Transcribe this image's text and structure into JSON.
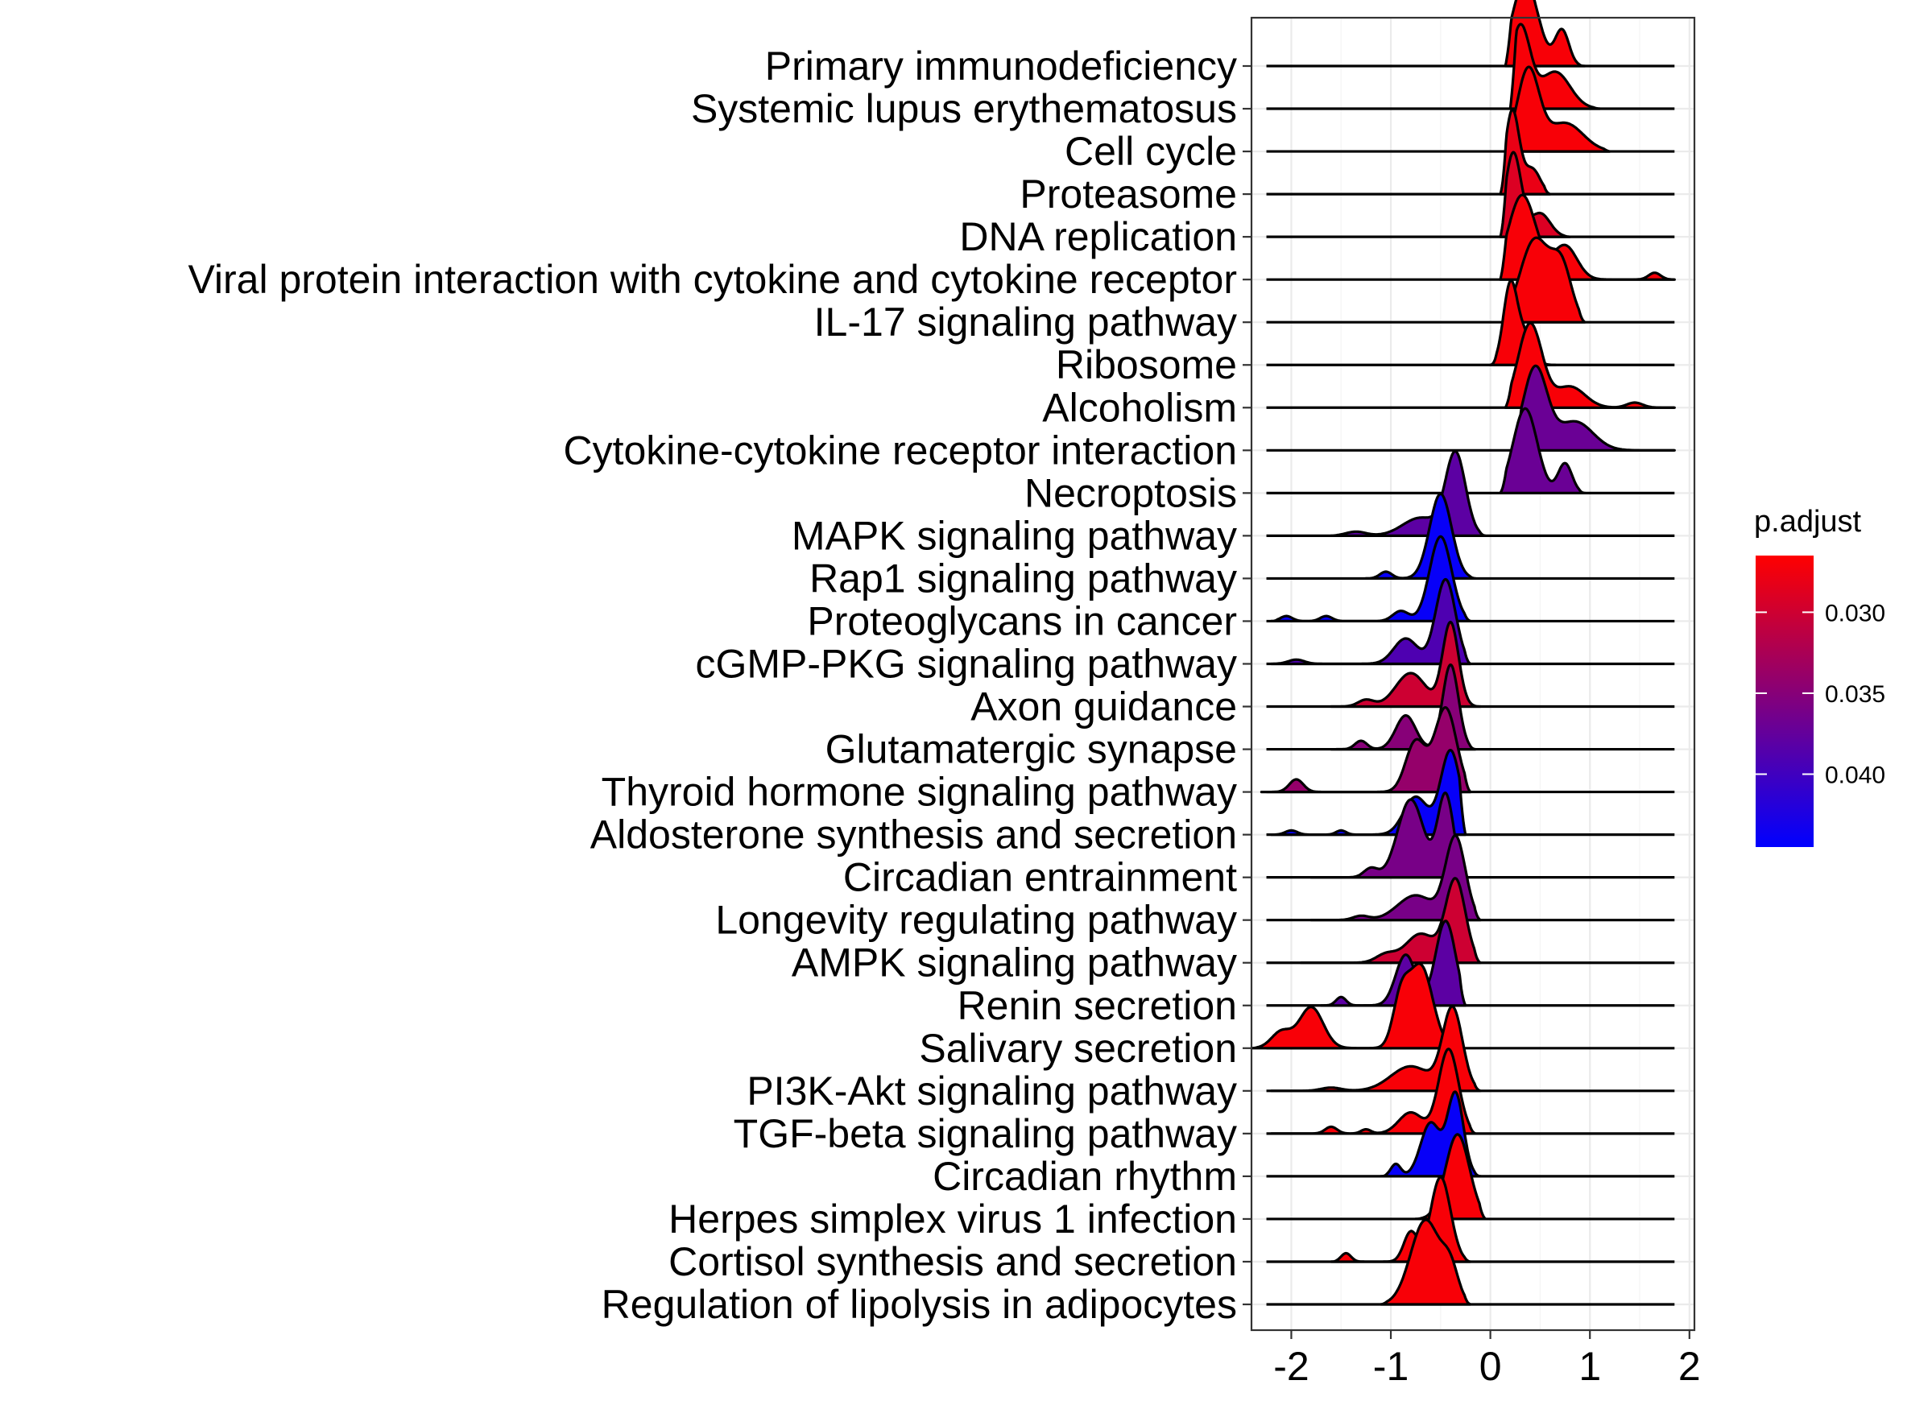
{
  "chart_data": {
    "type": "ridgeline",
    "title": "",
    "xlabel": "",
    "ylabel": "",
    "xlim": [
      -2.4,
      2.05
    ],
    "x_ticks": [
      -2,
      -1,
      0,
      1,
      2
    ],
    "x_tick_labels": [
      "-2",
      "-1",
      "0",
      "1",
      "2"
    ],
    "grid": true,
    "legend": {
      "title": "p.adjust",
      "position": "right",
      "range": [
        0.0265,
        0.0445
      ],
      "ticks": [
        0.03,
        0.035,
        0.04
      ],
      "tick_labels": [
        "0.030",
        "0.035",
        "0.040"
      ],
      "color_low": "#FF0000",
      "color_high": "#0000FF"
    },
    "series": [
      {
        "label": "Primary immunodeficiency",
        "p_adjust": 0.027,
        "range": [
          0.15,
          0.95
        ],
        "peaks": [
          {
            "x": 0.35,
            "h": 1.0,
            "w": 0.13
          },
          {
            "x": 0.72,
            "h": 0.42,
            "w": 0.07
          }
        ]
      },
      {
        "label": "Systemic lupus erythematosus",
        "p_adjust": 0.027,
        "range": [
          0.2,
          1.1
        ],
        "peaks": [
          {
            "x": 0.3,
            "h": 1.0,
            "w": 0.1
          },
          {
            "x": 0.65,
            "h": 0.45,
            "w": 0.15
          }
        ]
      },
      {
        "label": "Cell cycle",
        "p_adjust": 0.027,
        "range": [
          0.15,
          1.2
        ],
        "peaks": [
          {
            "x": 0.38,
            "h": 1.0,
            "w": 0.11
          },
          {
            "x": 0.75,
            "h": 0.35,
            "w": 0.18
          }
        ]
      },
      {
        "label": "Proteasome",
        "p_adjust": 0.028,
        "range": [
          0.1,
          0.6
        ],
        "peaks": [
          {
            "x": 0.22,
            "h": 1.0,
            "w": 0.07
          },
          {
            "x": 0.42,
            "h": 0.3,
            "w": 0.08
          }
        ]
      },
      {
        "label": "DNA replication",
        "p_adjust": 0.029,
        "range": [
          0.1,
          0.8
        ],
        "peaks": [
          {
            "x": 0.23,
            "h": 1.0,
            "w": 0.08
          },
          {
            "x": 0.5,
            "h": 0.28,
            "w": 0.1
          }
        ]
      },
      {
        "label": "Viral protein interaction with cytokine and cytokine receptor",
        "p_adjust": 0.027,
        "range": [
          0.1,
          1.85
        ],
        "peaks": [
          {
            "x": 0.32,
            "h": 1.0,
            "w": 0.14
          },
          {
            "x": 0.75,
            "h": 0.4,
            "w": 0.12
          },
          {
            "x": 1.65,
            "h": 0.08,
            "w": 0.06
          }
        ]
      },
      {
        "label": "IL-17 signaling pathway",
        "p_adjust": 0.027,
        "range": [
          0.15,
          0.95
        ],
        "peaks": [
          {
            "x": 0.45,
            "h": 1.0,
            "w": 0.15
          },
          {
            "x": 0.72,
            "h": 0.6,
            "w": 0.1
          }
        ]
      },
      {
        "label": "Ribosome",
        "p_adjust": 0.027,
        "range": [
          0.0,
          0.65
        ],
        "peaks": [
          {
            "x": 0.2,
            "h": 1.0,
            "w": 0.07
          },
          {
            "x": 0.35,
            "h": 0.35,
            "w": 0.08
          }
        ]
      },
      {
        "label": "Alcoholism",
        "p_adjust": 0.027,
        "range": [
          0.15,
          1.85
        ],
        "peaks": [
          {
            "x": 0.4,
            "h": 1.0,
            "w": 0.12
          },
          {
            "x": 0.8,
            "h": 0.25,
            "w": 0.15
          },
          {
            "x": 1.45,
            "h": 0.06,
            "w": 0.08
          }
        ]
      },
      {
        "label": "Cytokine-cytokine receptor interaction",
        "p_adjust": 0.037,
        "range": [
          0.25,
          1.85
        ],
        "peaks": [
          {
            "x": 0.45,
            "h": 1.0,
            "w": 0.12
          },
          {
            "x": 0.85,
            "h": 0.35,
            "w": 0.18
          }
        ]
      },
      {
        "label": "Necroptosis",
        "p_adjust": 0.037,
        "range": [
          0.1,
          0.95
        ],
        "peaks": [
          {
            "x": 0.35,
            "h": 1.0,
            "w": 0.12
          },
          {
            "x": 0.75,
            "h": 0.35,
            "w": 0.07
          }
        ]
      },
      {
        "label": "MAPK signaling pathway",
        "p_adjust": 0.038,
        "range": [
          -1.6,
          -0.05
        ],
        "peaks": [
          {
            "x": -0.35,
            "h": 1.0,
            "w": 0.1
          },
          {
            "x": -0.7,
            "h": 0.22,
            "w": 0.18
          },
          {
            "x": -1.35,
            "h": 0.05,
            "w": 0.1
          }
        ]
      },
      {
        "label": "Rap1 signaling pathway",
        "p_adjust": 0.044,
        "range": [
          -1.25,
          -0.15
        ],
        "peaks": [
          {
            "x": -0.5,
            "h": 1.0,
            "w": 0.11
          },
          {
            "x": -1.05,
            "h": 0.08,
            "w": 0.06
          }
        ]
      },
      {
        "label": "Proteoglycans in cancer",
        "p_adjust": 0.044,
        "range": [
          -2.2,
          -0.2
        ],
        "peaks": [
          {
            "x": -0.5,
            "h": 1.0,
            "w": 0.11
          },
          {
            "x": -0.9,
            "h": 0.12,
            "w": 0.08
          },
          {
            "x": -1.65,
            "h": 0.06,
            "w": 0.06
          },
          {
            "x": -2.05,
            "h": 0.06,
            "w": 0.06
          }
        ]
      },
      {
        "label": "cGMP-PKG signaling pathway",
        "p_adjust": 0.039,
        "range": [
          -2.2,
          -0.2
        ],
        "peaks": [
          {
            "x": -0.45,
            "h": 1.0,
            "w": 0.1
          },
          {
            "x": -0.85,
            "h": 0.3,
            "w": 0.12
          },
          {
            "x": -1.95,
            "h": 0.05,
            "w": 0.08
          }
        ]
      },
      {
        "label": "Axon guidance",
        "p_adjust": 0.03,
        "range": [
          -1.6,
          -0.1
        ],
        "peaks": [
          {
            "x": -0.4,
            "h": 1.0,
            "w": 0.08
          },
          {
            "x": -0.8,
            "h": 0.4,
            "w": 0.15
          },
          {
            "x": -1.25,
            "h": 0.08,
            "w": 0.08
          }
        ]
      },
      {
        "label": "Glutamatergic synapse",
        "p_adjust": 0.035,
        "range": [
          -1.6,
          -0.15
        ],
        "peaks": [
          {
            "x": -0.4,
            "h": 1.0,
            "w": 0.08
          },
          {
            "x": -0.85,
            "h": 0.4,
            "w": 0.1
          },
          {
            "x": -1.3,
            "h": 0.1,
            "w": 0.06
          }
        ]
      },
      {
        "label": "Thyroid hormone signaling pathway",
        "p_adjust": 0.034,
        "range": [
          -2.3,
          -0.2
        ],
        "peaks": [
          {
            "x": -0.45,
            "h": 1.0,
            "w": 0.11
          },
          {
            "x": -0.75,
            "h": 0.6,
            "w": 0.1
          },
          {
            "x": -1.95,
            "h": 0.15,
            "w": 0.07
          }
        ]
      },
      {
        "label": "Aldosterone synthesis and secretion",
        "p_adjust": 0.044,
        "range": [
          -2.2,
          -0.25
        ],
        "peaks": [
          {
            "x": -0.4,
            "h": 1.0,
            "w": 0.1
          },
          {
            "x": -0.75,
            "h": 0.45,
            "w": 0.12
          },
          {
            "x": -1.5,
            "h": 0.05,
            "w": 0.05
          },
          {
            "x": -2.0,
            "h": 0.05,
            "w": 0.06
          }
        ]
      },
      {
        "label": "Circadian entrainment",
        "p_adjust": 0.036,
        "range": [
          -1.8,
          -0.25
        ],
        "peaks": [
          {
            "x": -0.45,
            "h": 0.9,
            "w": 0.08
          },
          {
            "x": -0.8,
            "h": 0.85,
            "w": 0.13
          },
          {
            "x": -1.2,
            "h": 0.1,
            "w": 0.07
          }
        ]
      },
      {
        "label": "Longevity regulating pathway",
        "p_adjust": 0.036,
        "range": [
          -1.8,
          -0.1
        ],
        "peaks": [
          {
            "x": -0.35,
            "h": 1.0,
            "w": 0.1
          },
          {
            "x": -0.75,
            "h": 0.3,
            "w": 0.18
          },
          {
            "x": -1.3,
            "h": 0.05,
            "w": 0.08
          }
        ]
      },
      {
        "label": "AMPK signaling pathway",
        "p_adjust": 0.03,
        "range": [
          -1.9,
          -0.1
        ],
        "peaks": [
          {
            "x": -0.35,
            "h": 1.0,
            "w": 0.1
          },
          {
            "x": -0.7,
            "h": 0.35,
            "w": 0.15
          },
          {
            "x": -1.05,
            "h": 0.1,
            "w": 0.1
          }
        ]
      },
      {
        "label": "Renin secretion",
        "p_adjust": 0.038,
        "range": [
          -1.7,
          -0.25
        ],
        "peaks": [
          {
            "x": -0.45,
            "h": 1.0,
            "w": 0.1
          },
          {
            "x": -0.85,
            "h": 0.6,
            "w": 0.1
          },
          {
            "x": -1.5,
            "h": 0.1,
            "w": 0.05
          }
        ]
      },
      {
        "label": "Salivary secretion",
        "p_adjust": 0.027,
        "range": [
          -2.4,
          -0.35
        ],
        "peaks": [
          {
            "x": -0.7,
            "h": 1.0,
            "w": 0.12
          },
          {
            "x": -0.9,
            "h": 0.55,
            "w": 0.08
          },
          {
            "x": -1.8,
            "h": 0.5,
            "w": 0.12
          },
          {
            "x": -2.1,
            "h": 0.2,
            "w": 0.1
          }
        ]
      },
      {
        "label": "PI3K-Akt signaling pathway",
        "p_adjust": 0.027,
        "range": [
          -2.2,
          -0.1
        ],
        "peaks": [
          {
            "x": -0.38,
            "h": 1.0,
            "w": 0.1
          },
          {
            "x": -0.8,
            "h": 0.3,
            "w": 0.2
          },
          {
            "x": -1.6,
            "h": 0.04,
            "w": 0.1
          }
        ]
      },
      {
        "label": "TGF-beta signaling pathway",
        "p_adjust": 0.027,
        "range": [
          -2.2,
          -0.15
        ],
        "peaks": [
          {
            "x": -0.42,
            "h": 1.0,
            "w": 0.1
          },
          {
            "x": -0.8,
            "h": 0.25,
            "w": 0.12
          },
          {
            "x": -1.6,
            "h": 0.08,
            "w": 0.06
          },
          {
            "x": -1.25,
            "h": 0.05,
            "w": 0.05
          }
        ]
      },
      {
        "label": "Circadian rhythm",
        "p_adjust": 0.044,
        "range": [
          -1.1,
          -0.1
        ],
        "peaks": [
          {
            "x": -0.35,
            "h": 1.0,
            "w": 0.08
          },
          {
            "x": -0.6,
            "h": 0.65,
            "w": 0.1
          },
          {
            "x": -0.95,
            "h": 0.15,
            "w": 0.05
          }
        ]
      },
      {
        "label": "Herpes simplex virus 1 infection",
        "p_adjust": 0.027,
        "range": [
          -0.75,
          -0.05
        ],
        "peaks": [
          {
            "x": -0.33,
            "h": 1.0,
            "w": 0.12
          }
        ]
      },
      {
        "label": "Cortisol synthesis and secretion",
        "p_adjust": 0.027,
        "range": [
          -1.6,
          -0.2
        ],
        "peaks": [
          {
            "x": -0.5,
            "h": 1.0,
            "w": 0.1
          },
          {
            "x": -0.8,
            "h": 0.35,
            "w": 0.07
          },
          {
            "x": -1.45,
            "h": 0.1,
            "w": 0.05
          }
        ]
      },
      {
        "label": "Regulation of lipolysis in adipocytes",
        "p_adjust": 0.027,
        "range": [
          -1.1,
          -0.2
        ],
        "peaks": [
          {
            "x": -0.65,
            "h": 1.0,
            "w": 0.15
          },
          {
            "x": -0.4,
            "h": 0.35,
            "w": 0.08
          }
        ]
      }
    ]
  }
}
